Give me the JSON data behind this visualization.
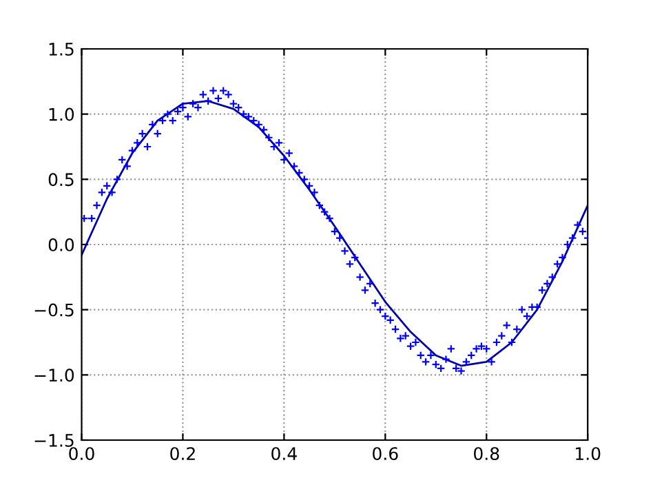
{
  "chart_data": {
    "type": "scatter",
    "xlim": [
      0.0,
      1.0
    ],
    "ylim": [
      -1.5,
      1.5
    ],
    "xticks": [
      {
        "value": 0.0,
        "label": "0.0"
      },
      {
        "value": 0.2,
        "label": "0.2"
      },
      {
        "value": 0.4,
        "label": "0.4"
      },
      {
        "value": 0.6,
        "label": "0.6"
      },
      {
        "value": 0.8,
        "label": "0.8"
      },
      {
        "value": 1.0,
        "label": "1.0"
      }
    ],
    "yticks": [
      {
        "value": -1.5,
        "label": "−1.5"
      },
      {
        "value": -1.0,
        "label": "−1.0"
      },
      {
        "value": -0.5,
        "label": "−0.5"
      },
      {
        "value": 0.0,
        "label": "0.0"
      },
      {
        "value": 0.5,
        "label": "0.5"
      },
      {
        "value": 1.0,
        "label": "1.0"
      },
      {
        "value": 1.5,
        "label": "1.5"
      }
    ],
    "grid": true,
    "marker": "cross",
    "series": [
      {
        "color": "#0000ff",
        "x": [
          0.005,
          0.02,
          0.03,
          0.04,
          0.05,
          0.06,
          0.07,
          0.08,
          0.09,
          0.1,
          0.11,
          0.12,
          0.13,
          0.14,
          0.15,
          0.16,
          0.17,
          0.18,
          0.19,
          0.2,
          0.21,
          0.22,
          0.23,
          0.24,
          0.25,
          0.26,
          0.27,
          0.28,
          0.29,
          0.3,
          0.31,
          0.32,
          0.33,
          0.34,
          0.35,
          0.36,
          0.37,
          0.38,
          0.39,
          0.4,
          0.41,
          0.42,
          0.43,
          0.44,
          0.45,
          0.46,
          0.47,
          0.48,
          0.49,
          0.5,
          0.51,
          0.52,
          0.53,
          0.54,
          0.55,
          0.56,
          0.57,
          0.58,
          0.59,
          0.6,
          0.61,
          0.62,
          0.63,
          0.64,
          0.65,
          0.66,
          0.67,
          0.68,
          0.69,
          0.7,
          0.71,
          0.72,
          0.73,
          0.74,
          0.75,
          0.76,
          0.77,
          0.78,
          0.79,
          0.8,
          0.81,
          0.82,
          0.83,
          0.84,
          0.85,
          0.86,
          0.87,
          0.88,
          0.89,
          0.9,
          0.91,
          0.92,
          0.93,
          0.94,
          0.95,
          0.96,
          0.97,
          0.98,
          0.99,
          1.0
        ],
        "values": [
          0.2,
          0.2,
          0.3,
          0.4,
          0.45,
          0.4,
          0.5,
          0.65,
          0.6,
          0.72,
          0.78,
          0.85,
          0.75,
          0.92,
          0.85,
          0.95,
          1.0,
          0.95,
          1.02,
          1.05,
          0.98,
          1.08,
          1.05,
          1.15,
          1.1,
          1.18,
          1.12,
          1.18,
          1.15,
          1.08,
          1.05,
          1.0,
          0.98,
          0.95,
          0.92,
          0.88,
          0.82,
          0.75,
          0.78,
          0.65,
          0.7,
          0.6,
          0.55,
          0.5,
          0.45,
          0.4,
          0.3,
          0.25,
          0.2,
          0.1,
          0.05,
          -0.05,
          -0.15,
          -0.1,
          -0.25,
          -0.35,
          -0.3,
          -0.45,
          -0.5,
          -0.55,
          -0.58,
          -0.65,
          -0.72,
          -0.7,
          -0.78,
          -0.75,
          -0.85,
          -0.9,
          -0.85,
          -0.92,
          -0.95,
          -0.88,
          -0.8,
          -0.95,
          -0.97,
          -0.9,
          -0.85,
          -0.8,
          -0.78,
          -0.8,
          -0.9,
          -0.75,
          -0.7,
          -0.62,
          -0.75,
          -0.65,
          -0.5,
          -0.55,
          -0.48,
          -0.48,
          -0.35,
          -0.3,
          -0.25,
          -0.15,
          -0.1,
          0.0,
          0.05,
          0.15,
          0.1,
          0.05
        ]
      },
      {
        "type": "line",
        "color": "#0000aa",
        "line_style": "solid",
        "marker": "none",
        "x": [
          0.0,
          0.05,
          0.1,
          0.15,
          0.2,
          0.25,
          0.3,
          0.35,
          0.4,
          0.45,
          0.5,
          0.55,
          0.6,
          0.65,
          0.7,
          0.75,
          0.8,
          0.85,
          0.9,
          0.95,
          1.0
        ],
        "values": [
          -0.08,
          0.35,
          0.7,
          0.95,
          1.08,
          1.1,
          1.04,
          0.9,
          0.68,
          0.42,
          0.14,
          -0.15,
          -0.44,
          -0.67,
          -0.85,
          -0.93,
          -0.9,
          -0.75,
          -0.5,
          -0.13,
          0.3
        ]
      }
    ]
  }
}
